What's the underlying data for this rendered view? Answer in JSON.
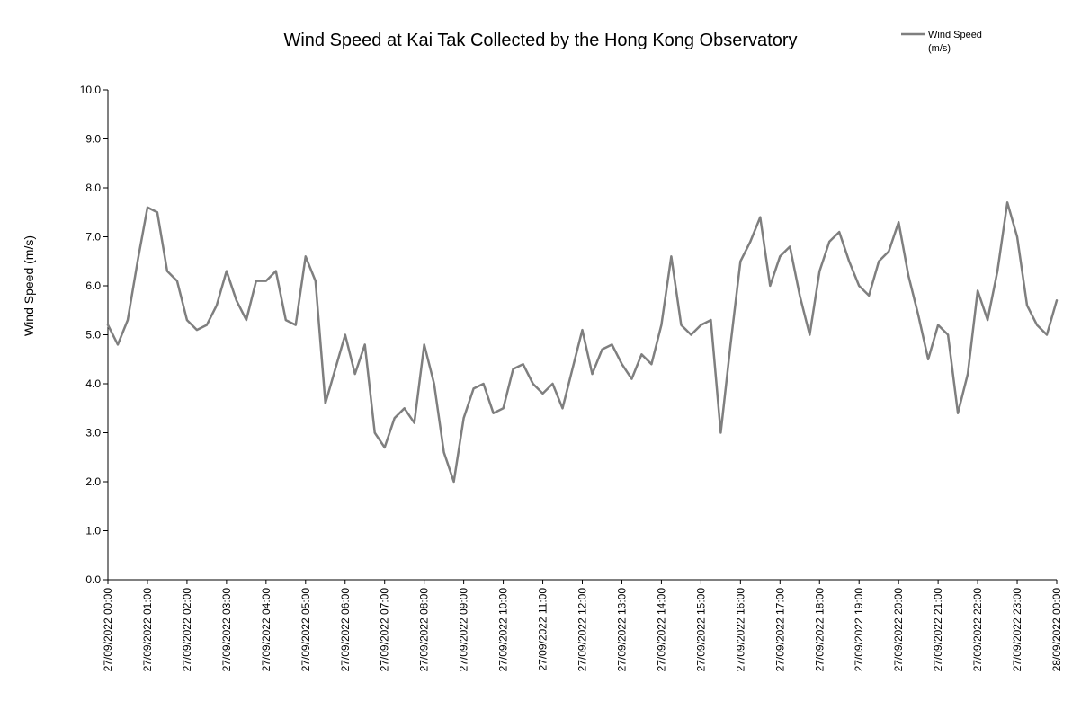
{
  "chart_data": {
    "type": "line",
    "title": "Wind Speed at Kai Tak Collected by the Hong Kong Observatory",
    "ylabel": "Wind Speed (m/s)",
    "xlabel": "",
    "ylim": [
      0,
      10
    ],
    "yticks": [
      "0.0",
      "1.0",
      "2.0",
      "3.0",
      "4.0",
      "5.0",
      "6.0",
      "7.0",
      "8.0",
      "9.0",
      "10.0"
    ],
    "xticks": [
      "27/09/2022 00:00",
      "27/09/2022 01:00",
      "27/09/2022 02:00",
      "27/09/2022 03:00",
      "27/09/2022 04:00",
      "27/09/2022 05:00",
      "27/09/2022 06:00",
      "27/09/2022 07:00",
      "27/09/2022 08:00",
      "27/09/2022 09:00",
      "27/09/2022 10:00",
      "27/09/2022 11:00",
      "27/09/2022 12:00",
      "27/09/2022 13:00",
      "27/09/2022 14:00",
      "27/09/2022 15:00",
      "27/09/2022 16:00",
      "27/09/2022 17:00",
      "27/09/2022 18:00",
      "27/09/2022 19:00",
      "27/09/2022 20:00",
      "27/09/2022 21:00",
      "27/09/2022 22:00",
      "27/09/2022 23:00",
      "28/09/2022 00:00"
    ],
    "legend": {
      "position": "top-right",
      "entries": [
        "Wind Speed (m/s)"
      ]
    },
    "grid": false,
    "color": "#7f7f7f",
    "series": [
      {
        "name": "Wind Speed (m/s)",
        "x_hours": [
          0,
          0.25,
          0.5,
          0.75,
          1,
          1.25,
          1.5,
          1.75,
          2,
          2.25,
          2.5,
          2.75,
          3,
          3.25,
          3.5,
          3.75,
          4,
          4.25,
          4.5,
          4.75,
          5,
          5.25,
          5.5,
          5.75,
          6,
          6.25,
          6.5,
          6.75,
          7,
          7.25,
          7.5,
          7.75,
          8,
          8.25,
          8.5,
          8.75,
          9,
          9.25,
          9.5,
          9.75,
          10,
          10.25,
          10.5,
          10.75,
          11,
          11.25,
          11.5,
          11.75,
          12,
          12.25,
          12.5,
          12.75,
          13,
          13.25,
          13.5,
          13.75,
          14,
          14.25,
          14.5,
          14.75,
          15,
          15.25,
          15.5,
          15.75,
          16,
          16.25,
          16.5,
          16.75,
          17,
          17.25,
          17.5,
          17.75,
          18,
          18.25,
          18.5,
          18.75,
          19,
          19.25,
          19.5,
          19.75,
          20,
          20.25,
          20.5,
          20.75,
          21,
          21.25,
          21.5,
          21.75,
          22,
          22.25,
          22.5,
          22.75,
          23,
          23.25,
          23.5,
          23.75,
          24
        ],
        "values": [
          5.2,
          4.8,
          5.3,
          6.5,
          7.6,
          7.5,
          6.3,
          6.1,
          5.3,
          5.1,
          5.2,
          5.6,
          6.3,
          5.7,
          5.3,
          6.1,
          6.1,
          6.3,
          5.3,
          5.2,
          6.6,
          6.1,
          3.6,
          4.3,
          5.0,
          4.2,
          4.8,
          3.0,
          2.7,
          3.3,
          3.5,
          3.2,
          4.8,
          4.0,
          2.6,
          2.0,
          3.3,
          3.9,
          4.0,
          3.4,
          3.5,
          4.3,
          4.4,
          4.0,
          3.8,
          4.0,
          3.5,
          4.3,
          5.1,
          4.2,
          4.7,
          4.8,
          4.4,
          4.1,
          4.6,
          4.4,
          5.2,
          6.6,
          5.2,
          5.0,
          5.2,
          5.3,
          3.0,
          4.8,
          6.5,
          6.9,
          7.4,
          6.0,
          6.6,
          6.8,
          5.8,
          5.0,
          6.3,
          6.9,
          7.1,
          6.5,
          6.0,
          5.8,
          6.5,
          6.7,
          7.3,
          6.2,
          5.4,
          4.5,
          5.2,
          5.0,
          3.4,
          4.2,
          5.9,
          5.3,
          6.3,
          7.7,
          7.0,
          5.6,
          5.2,
          5.0,
          5.7
        ]
      }
    ]
  }
}
